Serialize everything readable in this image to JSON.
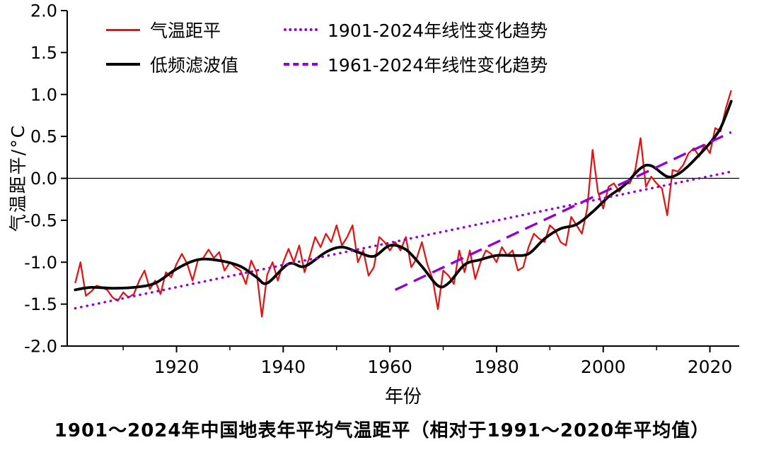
{
  "page": {
    "title": "1901～2024年中国地表年平均气温距平（相对于1991～2020年平均值）"
  },
  "axes": {
    "x_label": "年份",
    "y_label": "气温距平/°C",
    "y_ticks": [
      "2.0",
      "1.5",
      "1.0",
      "0.5",
      "0.0",
      "-0.5",
      "-1.0",
      "-1.5",
      "-2.0"
    ],
    "x_ticks": [
      1920,
      1940,
      1960,
      1980,
      2000,
      2020
    ],
    "x_minor_ticks": [
      1910,
      1930,
      1950,
      1970,
      1990,
      2010
    ]
  },
  "legend": {
    "items": [
      {
        "label": "气温距平"
      },
      {
        "label": "1901-2024年线性变化趋势"
      },
      {
        "label": "低频滤波值"
      },
      {
        "label": "1961-2024年线性变化趋势"
      }
    ]
  },
  "colors": {
    "anomaly": "#e01616",
    "filtered": "#000000",
    "trend": "#9400d3",
    "axis": "#000000"
  },
  "chart_data": {
    "type": "line",
    "title": "1901～2024年中国地表年平均气温距平（相对于1991～2020年平均值）",
    "xlabel": "年份",
    "ylabel": "气温距平/°C",
    "xlim": [
      1899.5,
      2025.5
    ],
    "ylim": [
      -2.0,
      2.0
    ],
    "grid": false,
    "legend_position": "top-left-inside",
    "x_start_year": 1901,
    "series": [
      {
        "name": "气温距平",
        "kind": "annual",
        "color": "#e01616",
        "values": [
          -1.25,
          -1.0,
          -1.4,
          -1.35,
          -1.28,
          -1.3,
          -1.33,
          -1.42,
          -1.46,
          -1.36,
          -1.42,
          -1.38,
          -1.22,
          -1.1,
          -1.32,
          -1.22,
          -1.38,
          -1.12,
          -1.18,
          -1.02,
          -0.9,
          -1.02,
          -1.22,
          -0.98,
          -0.95,
          -0.85,
          -0.95,
          -0.88,
          -1.1,
          -1.0,
          -1.06,
          -1.1,
          -1.26,
          -0.98,
          -1.12,
          -1.65,
          -1.15,
          -1.0,
          -1.22,
          -1.0,
          -0.84,
          -1.0,
          -0.8,
          -1.12,
          -0.92,
          -0.7,
          -0.82,
          -0.66,
          -0.76,
          -0.56,
          -0.8,
          -0.7,
          -0.56,
          -1.0,
          -0.86,
          -1.16,
          -1.06,
          -0.7,
          -0.76,
          -0.86,
          -0.76,
          -0.86,
          -0.7,
          -1.06,
          -0.96,
          -0.76,
          -1.02,
          -1.2,
          -1.56,
          -1.1,
          -1.16,
          -1.26,
          -0.86,
          -1.12,
          -0.86,
          -1.2,
          -1.0,
          -0.86,
          -0.9,
          -1.0,
          -0.82,
          -0.92,
          -0.86,
          -1.1,
          -1.06,
          -0.82,
          -0.66,
          -0.72,
          -0.76,
          -0.56,
          -0.62,
          -0.76,
          -0.8,
          -0.46,
          -0.56,
          -0.66,
          -0.36,
          0.34,
          -0.16,
          -0.36,
          -0.1,
          -0.06,
          -0.16,
          -0.06,
          -0.06,
          0.1,
          0.48,
          -0.1,
          0.02,
          -0.06,
          -0.12,
          -0.44,
          0.1,
          0.08,
          0.16,
          0.3,
          0.36,
          0.26,
          0.4,
          0.3,
          0.6,
          0.56,
          0.84,
          1.05
        ]
      },
      {
        "name": "低频滤波值",
        "kind": "smoothed",
        "color": "#000000",
        "points": [
          [
            1901,
            -1.33
          ],
          [
            1904,
            -1.3
          ],
          [
            1908,
            -1.31
          ],
          [
            1912,
            -1.3
          ],
          [
            1916,
            -1.25
          ],
          [
            1920,
            -1.08
          ],
          [
            1924,
            -0.97
          ],
          [
            1928,
            -0.98
          ],
          [
            1932,
            -1.05
          ],
          [
            1935,
            -1.18
          ],
          [
            1937,
            -1.25
          ],
          [
            1941,
            -1.02
          ],
          [
            1944,
            -1.05
          ],
          [
            1948,
            -0.88
          ],
          [
            1951,
            -0.82
          ],
          [
            1954,
            -0.88
          ],
          [
            1957,
            -0.93
          ],
          [
            1960,
            -0.8
          ],
          [
            1963,
            -0.85
          ],
          [
            1966,
            -1.05
          ],
          [
            1969,
            -1.28
          ],
          [
            1971,
            -1.25
          ],
          [
            1974,
            -1.03
          ],
          [
            1977,
            -0.97
          ],
          [
            1980,
            -0.92
          ],
          [
            1983,
            -0.92
          ],
          [
            1986,
            -0.9
          ],
          [
            1989,
            -0.72
          ],
          [
            1992,
            -0.6
          ],
          [
            1995,
            -0.55
          ],
          [
            1998,
            -0.4
          ],
          [
            2001,
            -0.22
          ],
          [
            2004,
            -0.08
          ],
          [
            2007,
            0.12
          ],
          [
            2009,
            0.15
          ],
          [
            2012,
            0.02
          ],
          [
            2014,
            0.05
          ],
          [
            2016,
            0.15
          ],
          [
            2018,
            0.28
          ],
          [
            2020,
            0.42
          ],
          [
            2022,
            0.6
          ],
          [
            2024,
            0.92
          ]
        ]
      },
      {
        "name": "1901-2024年线性变化趋势",
        "kind": "trend",
        "style": "dotted",
        "color": "#9400d3",
        "from": [
          1901,
          -1.55
        ],
        "to": [
          2024,
          0.08
        ]
      },
      {
        "name": "1961-2024年线性变化趋势",
        "kind": "trend",
        "style": "dashed",
        "color": "#9400d3",
        "from": [
          1961,
          -1.33
        ],
        "to": [
          2024,
          0.55
        ]
      }
    ]
  }
}
